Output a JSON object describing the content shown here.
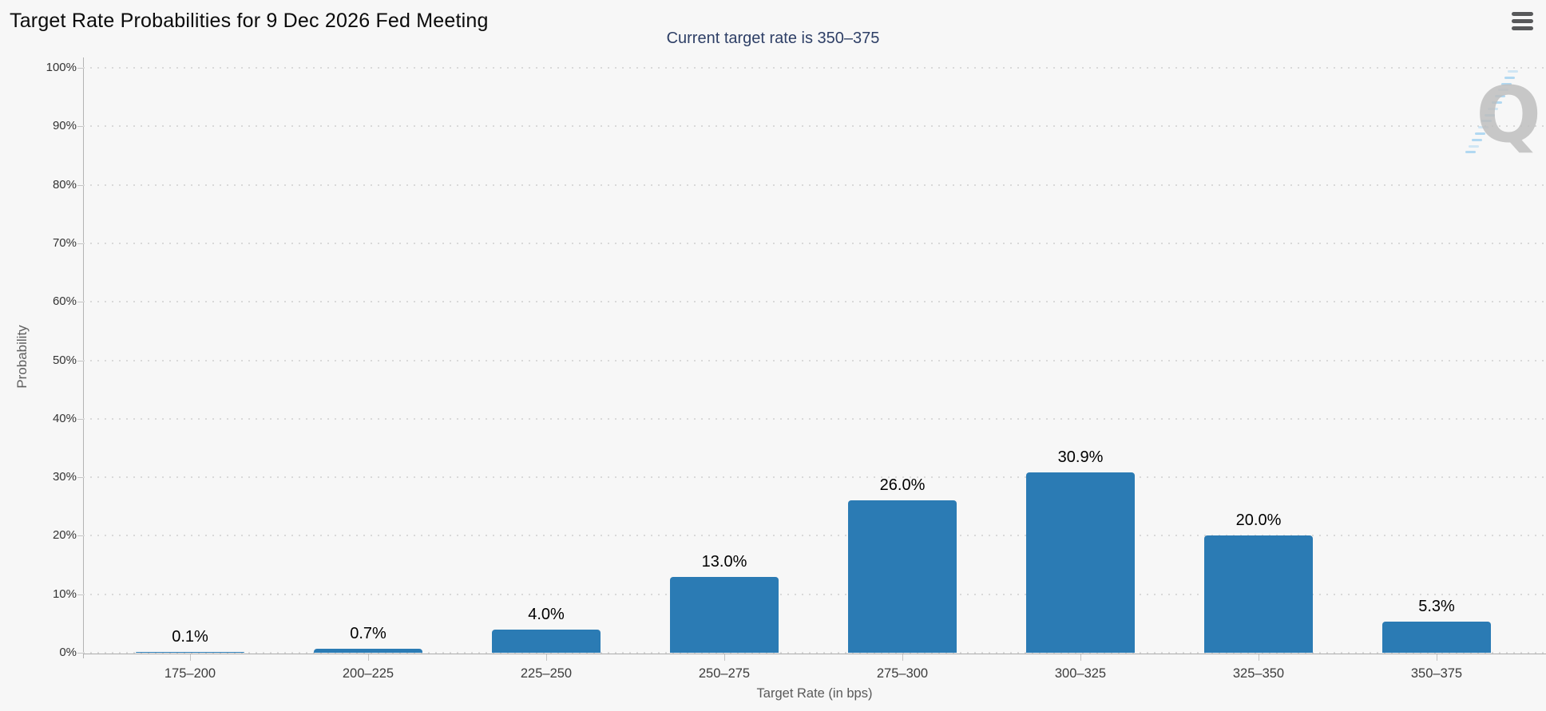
{
  "header": {
    "title": "Target Rate Probabilities for 9 Dec 2026 Fed Meeting",
    "menu_icon": "hamburger-menu-icon"
  },
  "subtitle": "Current target rate is 350–375",
  "watermark": {
    "letter": "Q"
  },
  "colors": {
    "background": "#f7f7f7",
    "bar": "#2b7bb4",
    "subtitle_text": "#2e3f66",
    "gridline": "#d9d9d9",
    "axis_line": "#ababab",
    "tick_label": "#333333",
    "axis_title": "#5a5a5a",
    "data_label": "#000000",
    "watermark_gray": "#bfbfbf",
    "watermark_blue": "#9fd0ef",
    "menu_icon": "#58595b"
  },
  "chart_data": {
    "type": "bar",
    "title": "Target Rate Probabilities for 9 Dec 2026 Fed Meeting",
    "subtitle": "Current target rate is 350–375",
    "categories": [
      "175–200",
      "200–225",
      "225–250",
      "250–275",
      "275–300",
      "300–325",
      "325–350",
      "350–375"
    ],
    "values": [
      0.1,
      0.7,
      4.0,
      13.0,
      26.0,
      30.9,
      20.0,
      5.3
    ],
    "value_labels": [
      "0.1%",
      "0.7%",
      "4.0%",
      "13.0%",
      "26.0%",
      "30.9%",
      "20.0%",
      "5.3%"
    ],
    "xlabel": "Target Rate (in bps)",
    "ylabel": "Probability",
    "ylim": [
      0,
      100
    ],
    "ytick_step": 10,
    "ytick_labels": [
      "0%",
      "10%",
      "20%",
      "30%",
      "40%",
      "50%",
      "60%",
      "70%",
      "80%",
      "90%",
      "100%"
    ],
    "grid": "dotted-horizontal",
    "legend": "none",
    "bar_color": "#2b7bb4"
  }
}
